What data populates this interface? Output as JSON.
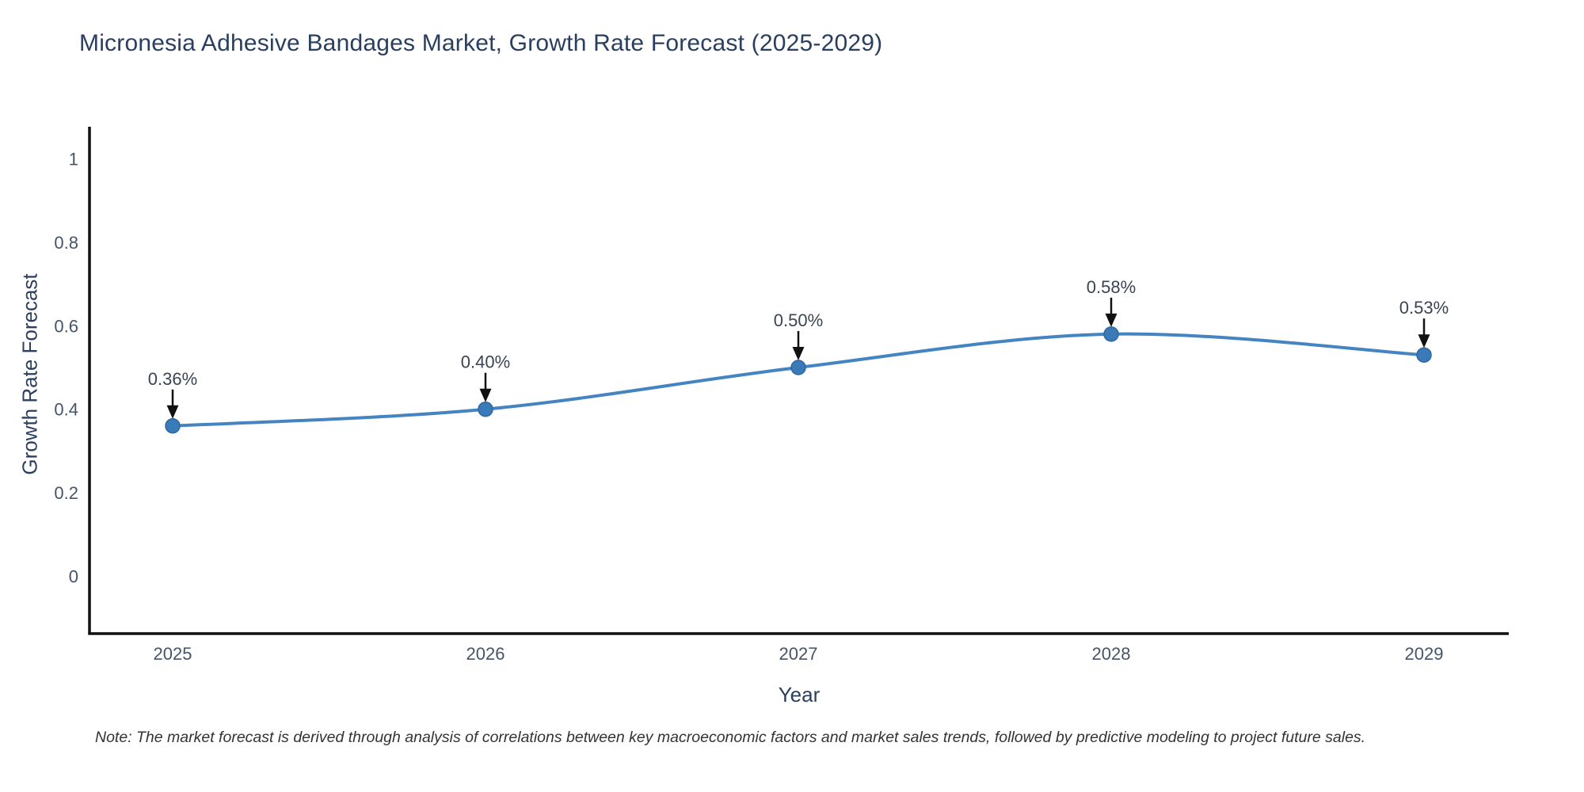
{
  "chart_data": {
    "type": "line",
    "title": "Micronesia Adhesive Bandages Market, Growth Rate Forecast (2025-2029)",
    "xlabel": "Year",
    "ylabel": "Growth Rate Forecast",
    "line_shape": "spline",
    "grid": false,
    "legend_position": "none",
    "x": [
      2025,
      2026,
      2027,
      2028,
      2029
    ],
    "series": [
      {
        "name": "Growth Rate Forecast",
        "values": [
          0.36,
          0.4,
          0.5,
          0.58,
          0.53
        ]
      }
    ],
    "point_labels": [
      "0.36%",
      "0.40%",
      "0.50%",
      "0.58%",
      "0.53%"
    ],
    "xtick_labels": [
      "2025",
      "2026",
      "2027",
      "2028",
      "2029"
    ],
    "ytick_values": [
      0,
      0.2,
      0.4,
      0.6,
      0.8,
      1
    ],
    "ytick_labels": [
      "0",
      "0.2",
      "0.4",
      "0.6",
      "0.8",
      "1"
    ],
    "ylim": [
      -0.14,
      1.08
    ],
    "xlim": [
      2024.73,
      2029.27
    ],
    "annotation_style": "value label above point with downward black arrow",
    "note": "Note: The market forecast is derived through analysis of correlations between key macroeconomic factors and market sales trends, followed by predictive modeling to project future sales.",
    "colors": {
      "line": "#4484c1",
      "marker_fill": "#3a7ab8",
      "marker_edge": "#2e689f",
      "axis_line": "#111111",
      "tick_label": "#44556a",
      "title_text": "#2a3f5f",
      "annotation_text": "#3a4454",
      "arrow": "#111111",
      "note_text": "#333333",
      "background": "#ffffff"
    }
  }
}
